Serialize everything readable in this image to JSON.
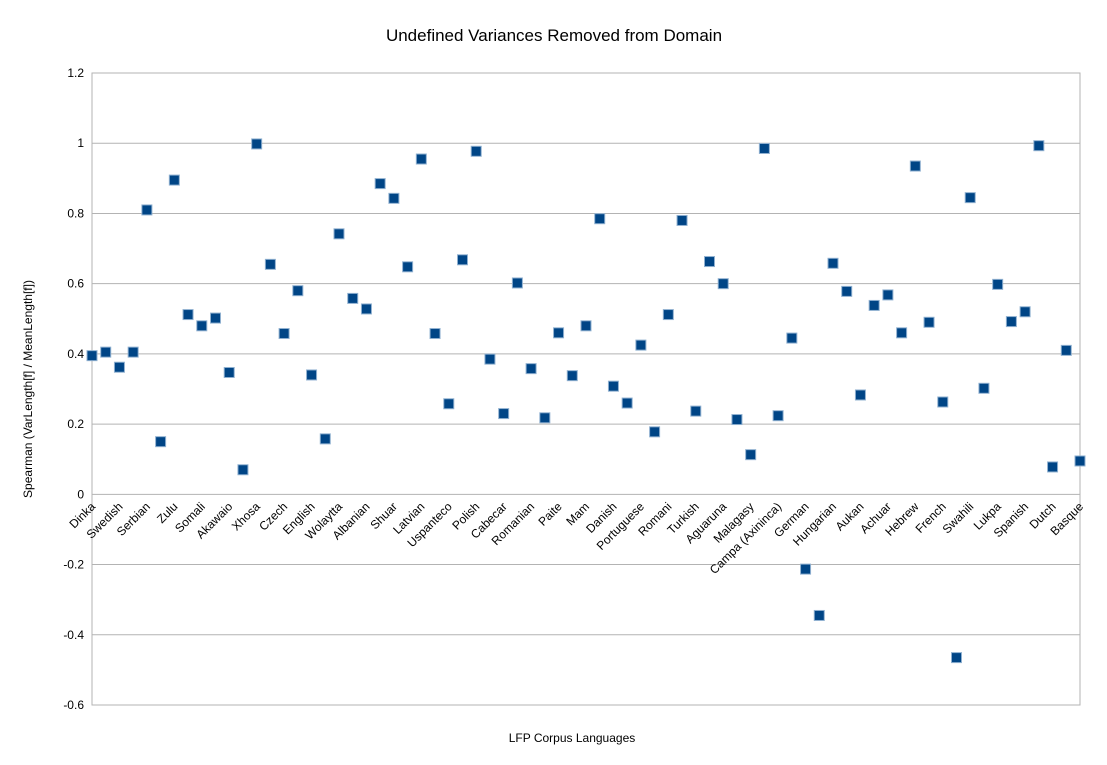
{
  "chart_data": {
    "type": "scatter",
    "title": "Undefined Variances Removed from Domain",
    "xlabel": "LFP Corpus Languages",
    "ylabel": "Spearman (VarLength[f] / MeanLength[f])",
    "ylim": [
      -0.6,
      1.2
    ],
    "yticks": [
      -0.6,
      -0.4,
      -0.2,
      0,
      0.2,
      0.4,
      0.6,
      0.8,
      1,
      1.2
    ],
    "grid": true,
    "legend": "none",
    "marker_color": "#004586",
    "categories": [
      "Dinka",
      "Swedish",
      "Serbian",
      "Zulu",
      "Somali",
      "Akawaio",
      "Xhosa",
      "Czech",
      "English",
      "Wolaytta",
      "Albanian",
      "Shuar",
      "Latvian",
      "Uspanteco",
      "Polish",
      "Cabecar",
      "Romanian",
      "Paite",
      "Mam",
      "Danish",
      "Portuguese",
      "Romani",
      "Turkish",
      "Aguaruna",
      "Malagasy",
      "Campa (Axininca)",
      "German",
      "Hungarian",
      "Aukan",
      "Achuar",
      "Hebrew",
      "French",
      "Swahili",
      "Lukpa",
      "Spanish",
      "Dutch",
      "Basque"
    ],
    "points": [
      0.395,
      0.405,
      0.362,
      0.405,
      0.81,
      0.15,
      0.895,
      0.512,
      0.48,
      0.502,
      0.347,
      0.07,
      0.998,
      0.655,
      0.458,
      0.58,
      0.34,
      0.158,
      0.742,
      0.558,
      0.528,
      0.885,
      0.843,
      0.648,
      0.955,
      0.458,
      0.258,
      0.668,
      0.977,
      0.385,
      0.23,
      0.602,
      0.358,
      0.218,
      0.46,
      0.338,
      0.48,
      0.785,
      0.308,
      0.26,
      0.425,
      0.178,
      0.512,
      0.78,
      0.237,
      0.663,
      0.6,
      0.213,
      0.113,
      0.985,
      0.224,
      0.445,
      -0.213,
      -0.345,
      0.658,
      0.578,
      0.283,
      0.538,
      0.568,
      0.46,
      0.935,
      0.49,
      0.263,
      -0.465,
      0.845,
      0.302,
      0.598,
      0.492,
      0.52,
      0.993,
      0.078,
      0.41,
      0.095
    ]
  }
}
